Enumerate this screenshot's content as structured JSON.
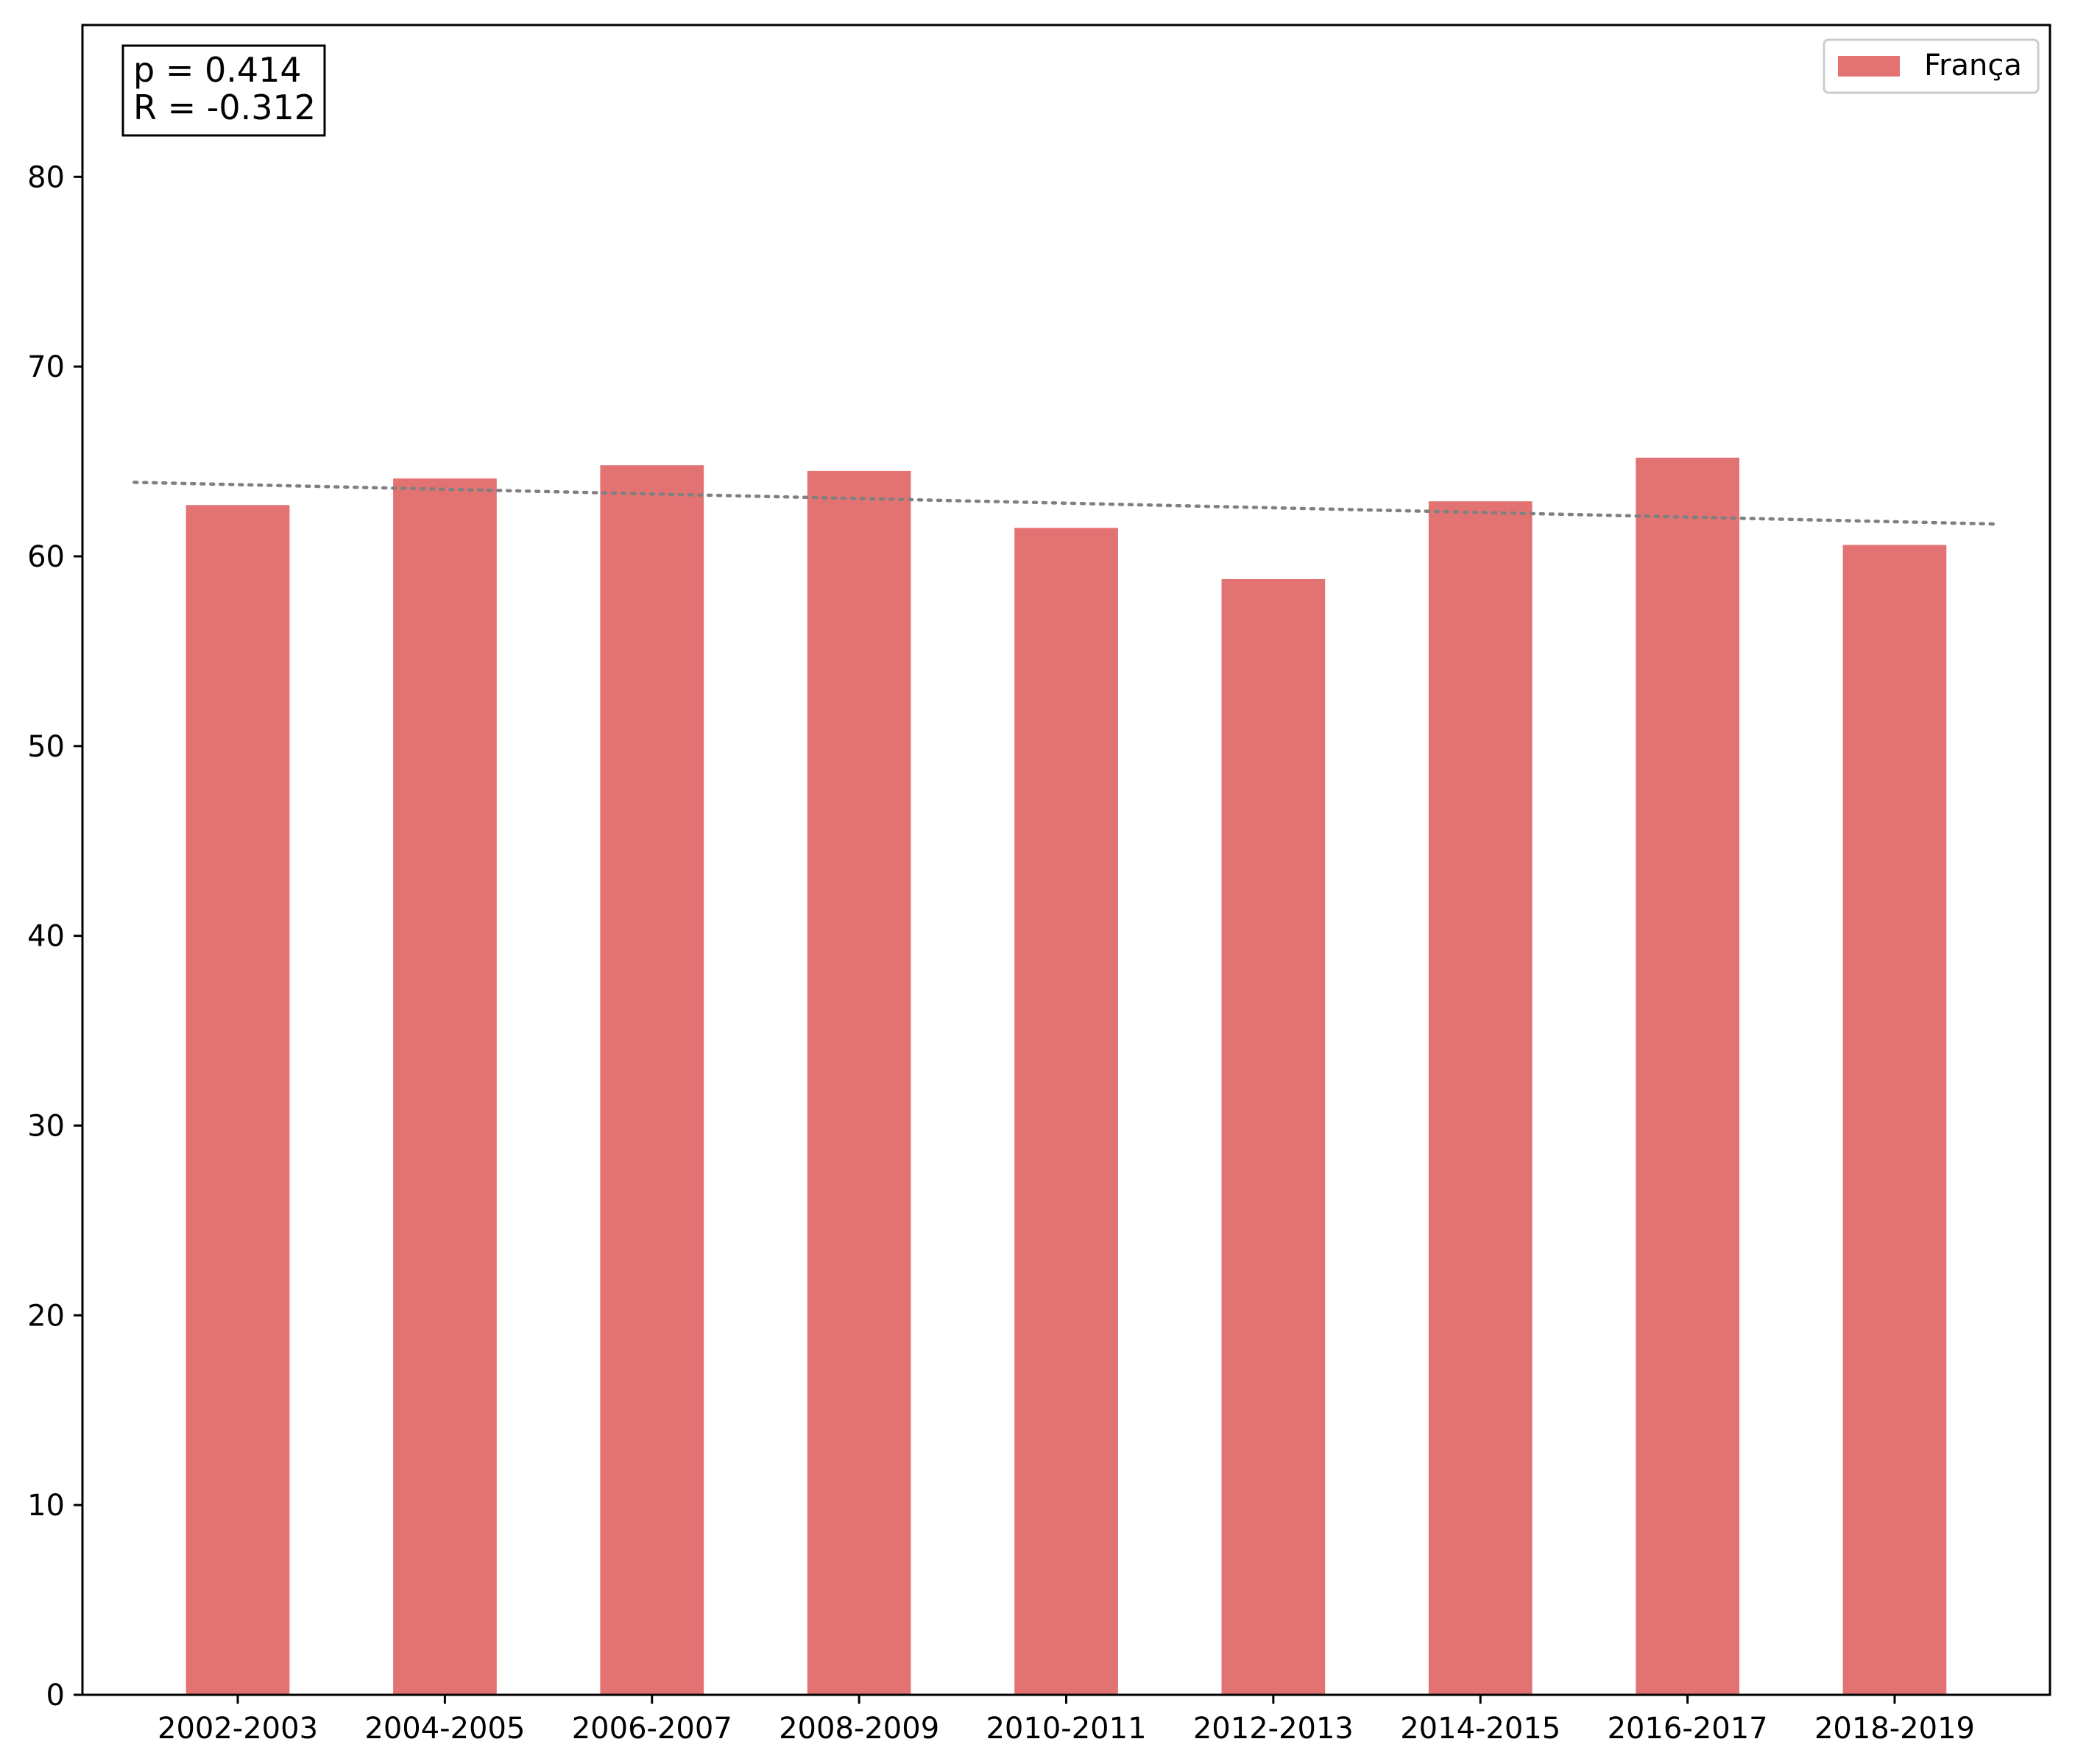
{
  "chart_data": {
    "type": "bar",
    "categories": [
      "2002-2003",
      "2004-2005",
      "2006-2007",
      "2008-2009",
      "2010-2011",
      "2012-2013",
      "2014-2015",
      "2016-2017",
      "2018-2019"
    ],
    "series": [
      {
        "name": "França",
        "color": "#e37372",
        "values": [
          62.7,
          64.1,
          64.8,
          64.5,
          61.5,
          58.8,
          62.9,
          65.2,
          60.6
        ]
      }
    ],
    "trendline": {
      "style": "dotted",
      "color": "#808080",
      "start": 63.9,
      "end": 61.7
    },
    "annotation": {
      "lines": [
        "p = 0.414",
        "R = -0.312"
      ],
      "placement": "top-left"
    },
    "legend": {
      "placement": "top-right"
    },
    "title": "",
    "xlabel": "",
    "ylabel": "",
    "ylim": [
      0,
      88
    ],
    "yticks": [
      0,
      10,
      20,
      30,
      40,
      50,
      60,
      70,
      80
    ],
    "grid": false
  }
}
